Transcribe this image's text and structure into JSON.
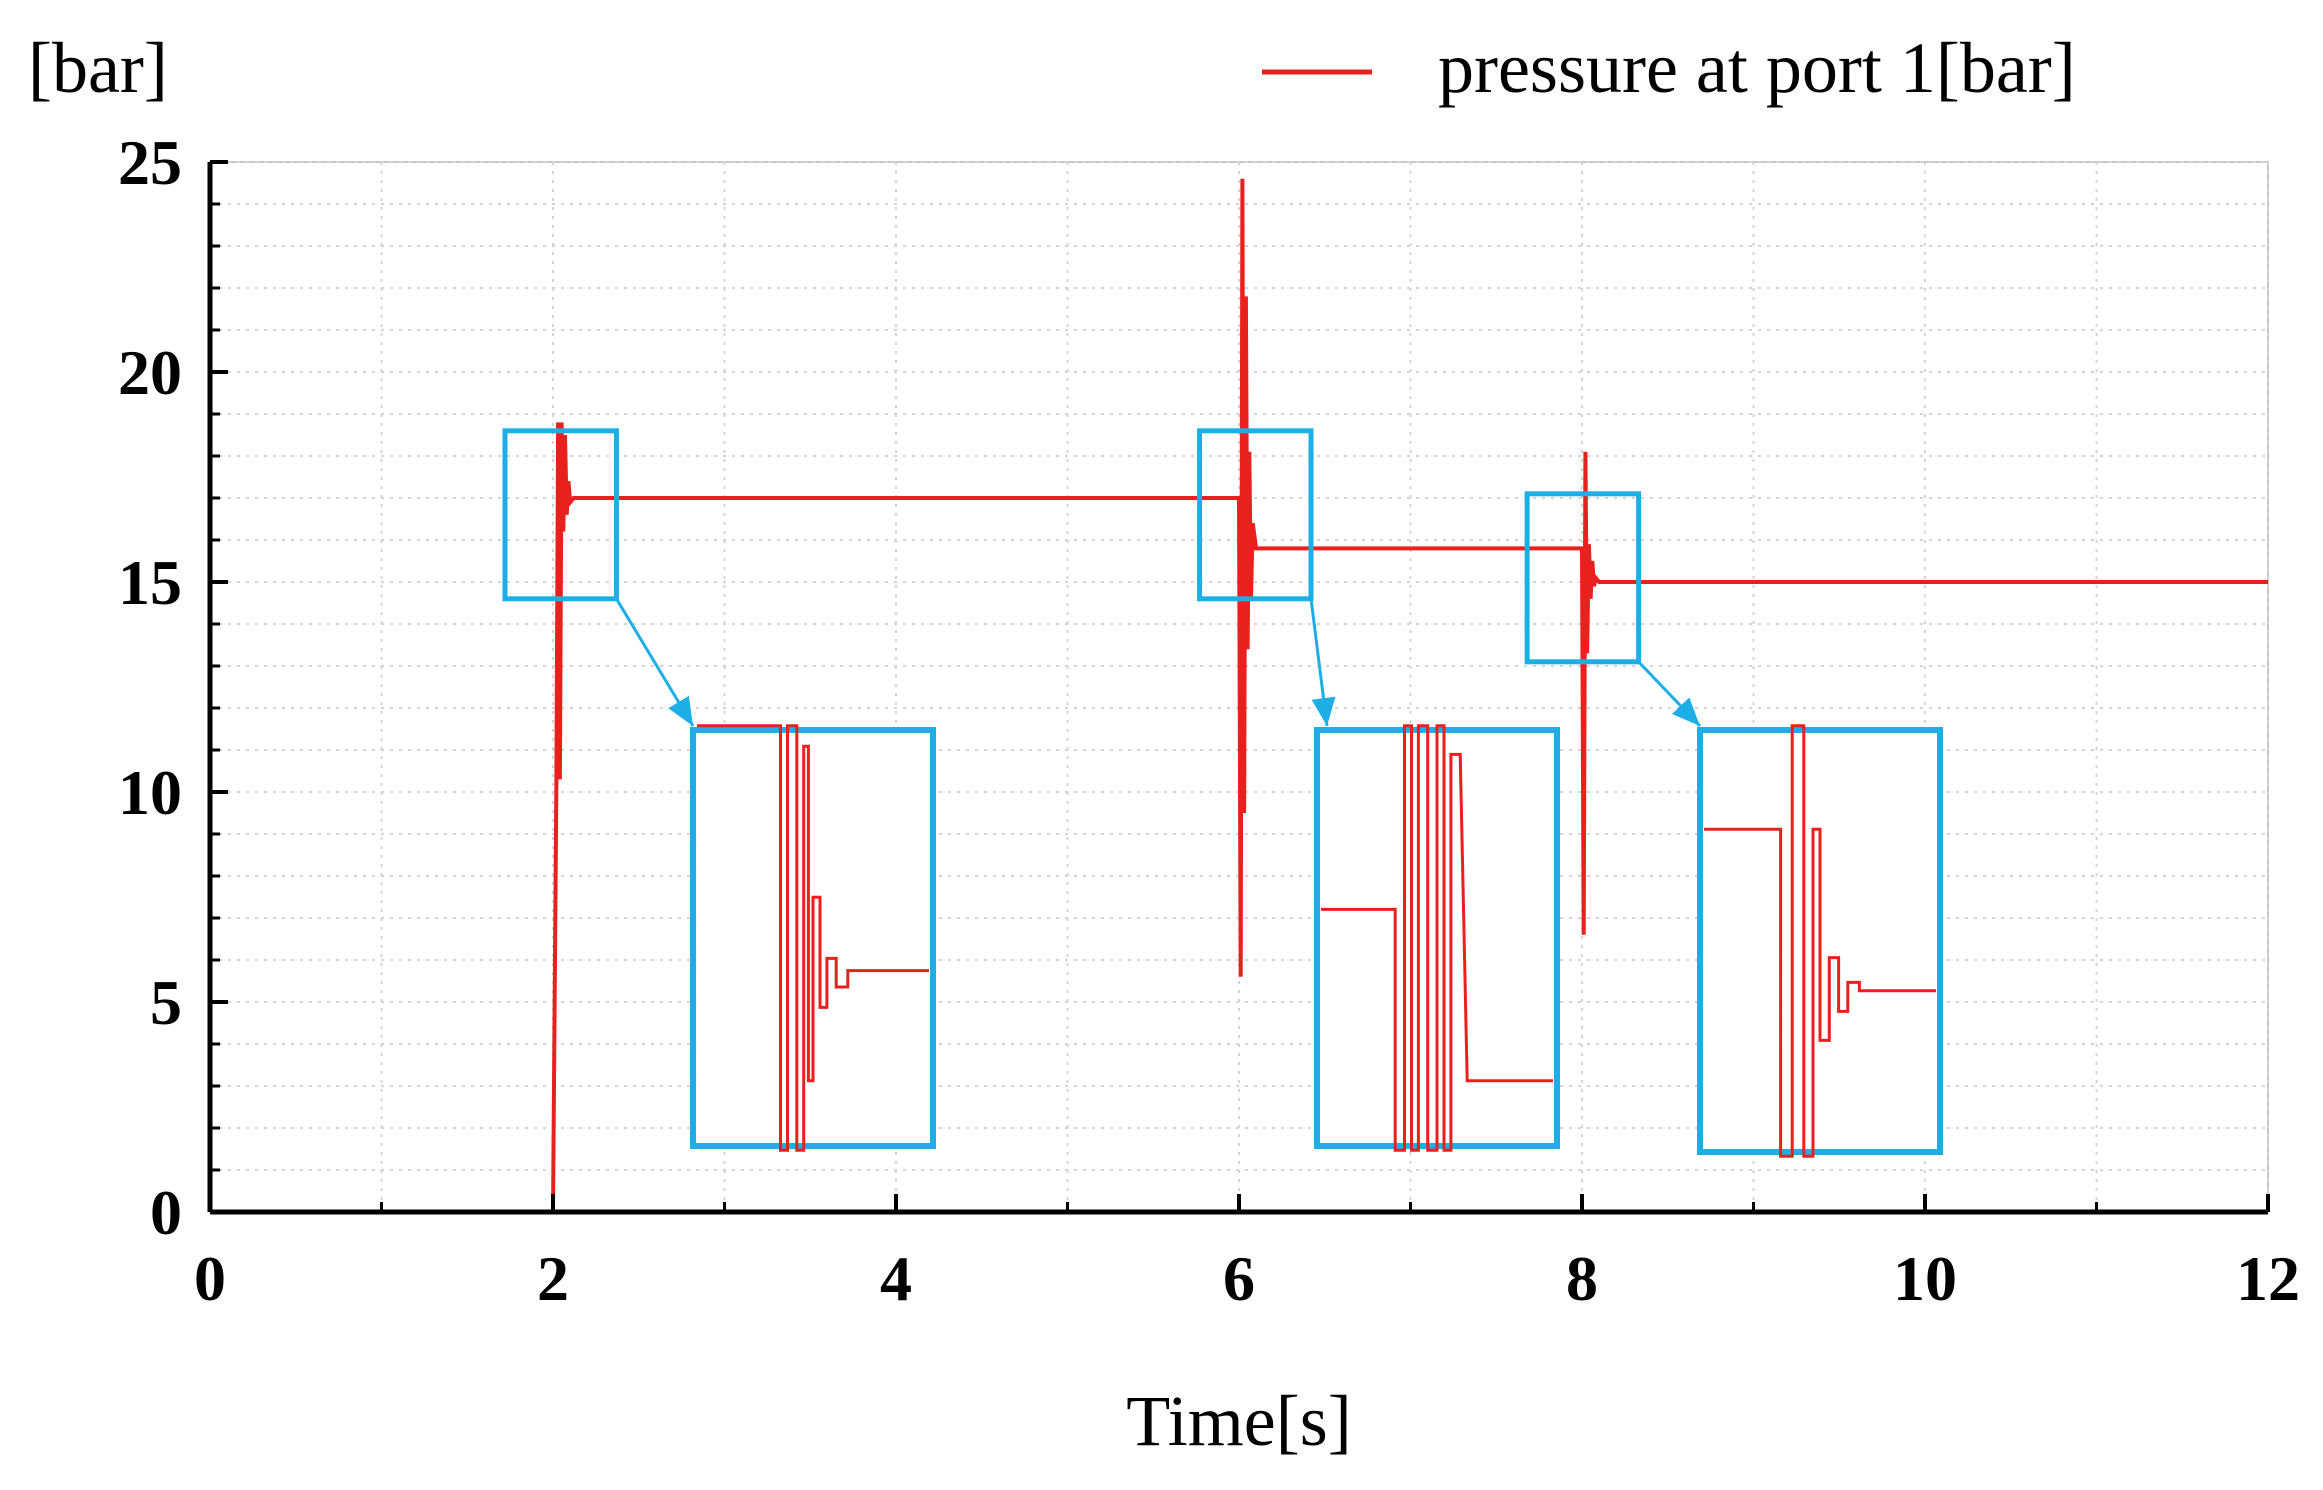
{
  "chart_data": {
    "type": "line",
    "title": "",
    "xlabel": "Time[s]",
    "ylabel": "[bar]",
    "xlim": [
      0,
      12
    ],
    "ylim": [
      0,
      25
    ],
    "x_ticks": [
      0,
      2,
      4,
      6,
      8,
      10,
      12
    ],
    "y_ticks": [
      0,
      5,
      10,
      15,
      20,
      25
    ],
    "grid": true,
    "legend": {
      "position": "top-right",
      "entries": [
        "pressure at port 1[bar]"
      ]
    },
    "series": [
      {
        "name": "pressure at port 1[bar]",
        "color": "#e8201e",
        "x": [
          0,
          2.0,
          2.02,
          2.03,
          2.04,
          2.05,
          2.06,
          2.07,
          2.08,
          2.09,
          2.1,
          2.12,
          2.15,
          6.0,
          6.01,
          6.02,
          6.03,
          6.04,
          6.05,
          6.06,
          6.07,
          6.08,
          6.1,
          6.12,
          6.15,
          8.0,
          8.01,
          8.02,
          8.03,
          8.04,
          8.05,
          8.06,
          8.07,
          8.08,
          8.1,
          8.12,
          12.0
        ],
        "y": [
          0,
          0,
          10.3,
          18.8,
          10.3,
          18.8,
          16.2,
          18.5,
          16.6,
          17.4,
          16.9,
          17.0,
          17.0,
          17.0,
          5.6,
          24.6,
          9.5,
          21.8,
          13.4,
          18.1,
          14.6,
          16.4,
          15.8,
          15.8,
          15.8,
          15.8,
          6.6,
          18.1,
          13.3,
          15.9,
          14.6,
          15.5,
          14.9,
          15.1,
          15.0,
          15.0,
          15.0
        ]
      }
    ]
  },
  "zoom_regions": [
    {
      "x_range": [
        1.72,
        2.37
      ],
      "y_range": [
        14.6,
        18.6
      ]
    },
    {
      "x_range": [
        5.77,
        6.42
      ],
      "y_range": [
        14.6,
        18.6
      ]
    },
    {
      "x_range": [
        7.68,
        8.33
      ],
      "y_range": [
        13.1,
        17.1
      ]
    }
  ],
  "colors": {
    "zoom_box": "#1eaee6",
    "line": "#e8201e"
  }
}
